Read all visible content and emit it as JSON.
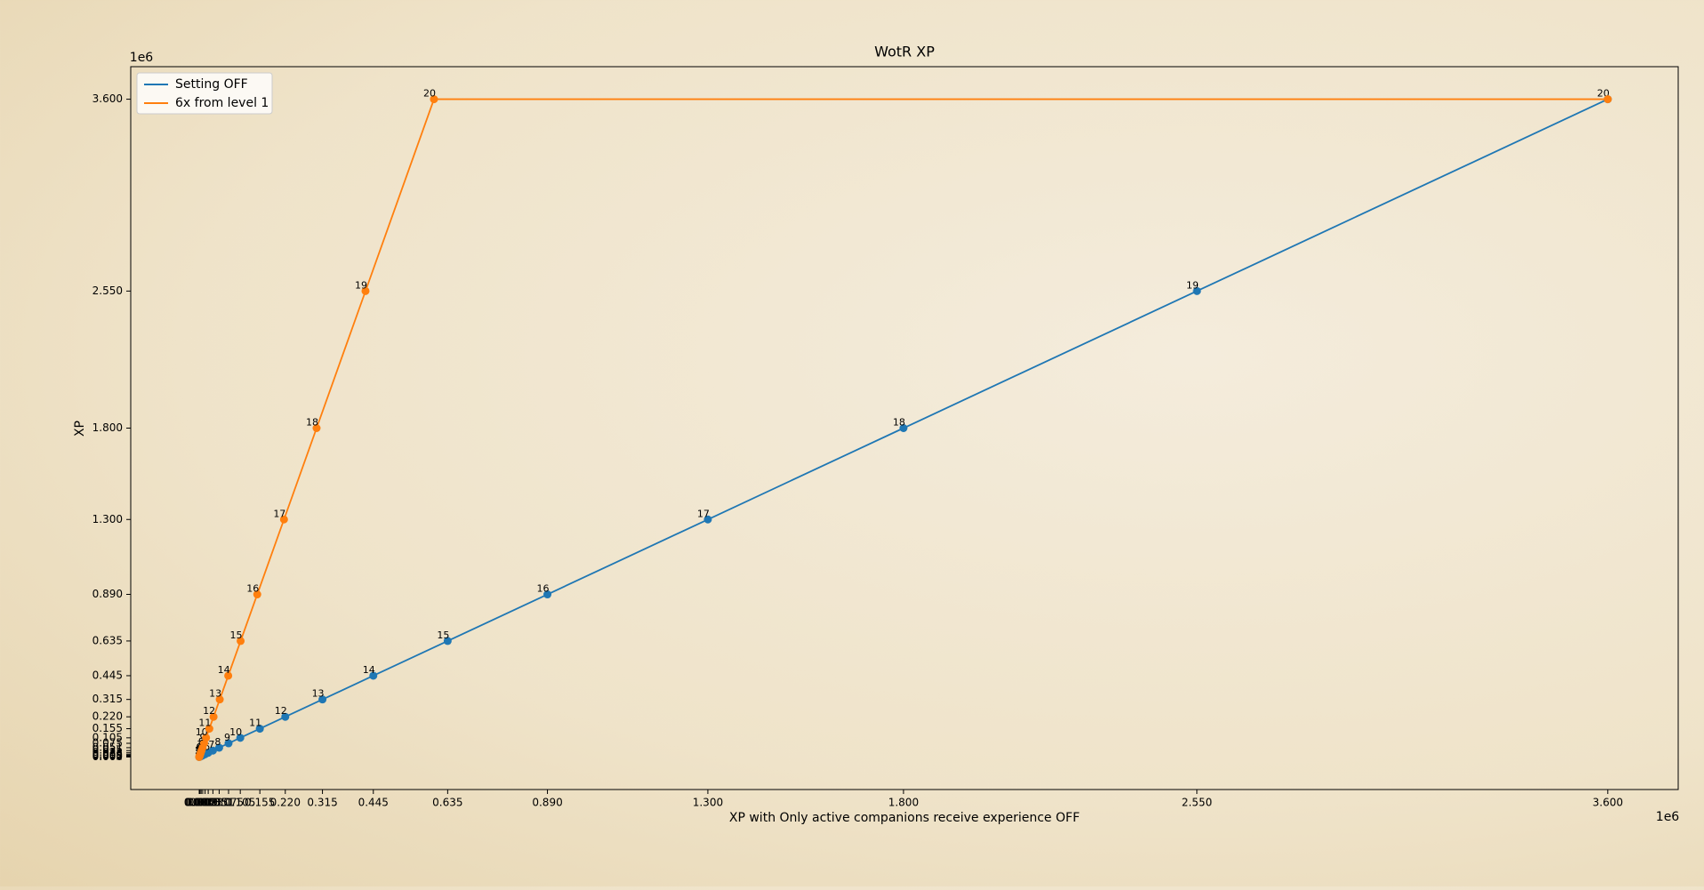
{
  "chart_data": {
    "type": "line",
    "title": "WotR XP",
    "x_label": "XP with Only active companions receive experience OFF",
    "y_label": "XP",
    "x_offset": "1e6",
    "y_offset": "1e6",
    "xlim": [
      -0.175,
      3.78
    ],
    "ylim": [
      -0.178,
      3.778
    ],
    "xticks": [
      {
        "value": 0,
        "label": "0.000"
      },
      {
        "value": 0.002,
        "label": "0.002"
      },
      {
        "value": 0.005,
        "label": "0.005"
      },
      {
        "value": 0.009,
        "label": "0.009"
      },
      {
        "value": 0.015,
        "label": "0.015"
      },
      {
        "value": 0.023,
        "label": "0.023"
      },
      {
        "value": 0.035,
        "label": "0.035"
      },
      {
        "value": 0.051,
        "label": "0.051"
      },
      {
        "value": 0.075,
        "label": "0.075"
      },
      {
        "value": 0.105,
        "label": "0.105"
      },
      {
        "value": 0.155,
        "label": "0.155"
      },
      {
        "value": 0.22,
        "label": "0.220"
      },
      {
        "value": 0.315,
        "label": "0.315"
      },
      {
        "value": 0.445,
        "label": "0.445"
      },
      {
        "value": 0.635,
        "label": "0.635"
      },
      {
        "value": 0.89,
        "label": "0.890"
      },
      {
        "value": 1.3,
        "label": "1.300"
      },
      {
        "value": 1.8,
        "label": "1.800"
      },
      {
        "value": 2.55,
        "label": "2.550"
      },
      {
        "value": 3.6,
        "label": "3.600"
      }
    ],
    "yticks": [
      {
        "value": 0,
        "label": "0.000"
      },
      {
        "value": 0.002,
        "label": "0.002"
      },
      {
        "value": 0.005,
        "label": "0.005"
      },
      {
        "value": 0.009,
        "label": "0.009"
      },
      {
        "value": 0.015,
        "label": "0.015"
      },
      {
        "value": 0.023,
        "label": "0.023"
      },
      {
        "value": 0.035,
        "label": "0.035"
      },
      {
        "value": 0.051,
        "label": "0.051"
      },
      {
        "value": 0.075,
        "label": "0.075"
      },
      {
        "value": 0.105,
        "label": "0.105"
      },
      {
        "value": 0.155,
        "label": "0.155"
      },
      {
        "value": 0.22,
        "label": "0.220"
      },
      {
        "value": 0.315,
        "label": "0.315"
      },
      {
        "value": 0.445,
        "label": "0.445"
      },
      {
        "value": 0.635,
        "label": "0.635"
      },
      {
        "value": 0.89,
        "label": "0.890"
      },
      {
        "value": 1.3,
        "label": "1.300"
      },
      {
        "value": 1.8,
        "label": "1.800"
      },
      {
        "value": 2.55,
        "label": "2.550"
      },
      {
        "value": 3.6,
        "label": "3.600"
      }
    ],
    "legend": "upper left",
    "series": [
      {
        "name": "Setting OFF",
        "color": "#1f77b4",
        "x": [
          0,
          0.002,
          0.005,
          0.009,
          0.015,
          0.023,
          0.035,
          0.051,
          0.075,
          0.105,
          0.155,
          0.22,
          0.315,
          0.445,
          0.635,
          0.89,
          1.3,
          1.8,
          2.55,
          3.6
        ],
        "values": [
          0,
          0.002,
          0.005,
          0.009,
          0.015,
          0.023,
          0.035,
          0.051,
          0.075,
          0.105,
          0.155,
          0.22,
          0.315,
          0.445,
          0.635,
          0.89,
          1.3,
          1.8,
          2.55,
          3.6
        ],
        "point_labels": [
          "1",
          "2",
          "3",
          "4",
          "5",
          "6",
          "7",
          "8",
          "9",
          "10",
          "11",
          "12",
          "13",
          "14",
          "15",
          "16",
          "17",
          "18",
          "19",
          "20"
        ]
      },
      {
        "name": "6x from level 1",
        "color": "#ff7f0e",
        "x": [
          0,
          0.000333,
          0.000833,
          0.0015,
          0.0025,
          0.003833,
          0.005833,
          0.0085,
          0.0125,
          0.0175,
          0.025833,
          0.036667,
          0.0525,
          0.074167,
          0.105833,
          0.148333,
          0.216667,
          0.3,
          0.425,
          0.6,
          3.6
        ],
        "values": [
          0,
          0.002,
          0.005,
          0.009,
          0.015,
          0.023,
          0.035,
          0.051,
          0.075,
          0.105,
          0.155,
          0.22,
          0.315,
          0.445,
          0.635,
          0.89,
          1.3,
          1.8,
          2.55,
          3.6,
          3.6
        ],
        "point_labels": [
          "1",
          "2",
          "3",
          "4",
          "5",
          "6",
          "7",
          "8",
          "9",
          "10",
          "11",
          "12",
          "13",
          "14",
          "15",
          "16",
          "17",
          "18",
          "19",
          "20",
          null
        ]
      }
    ]
  }
}
